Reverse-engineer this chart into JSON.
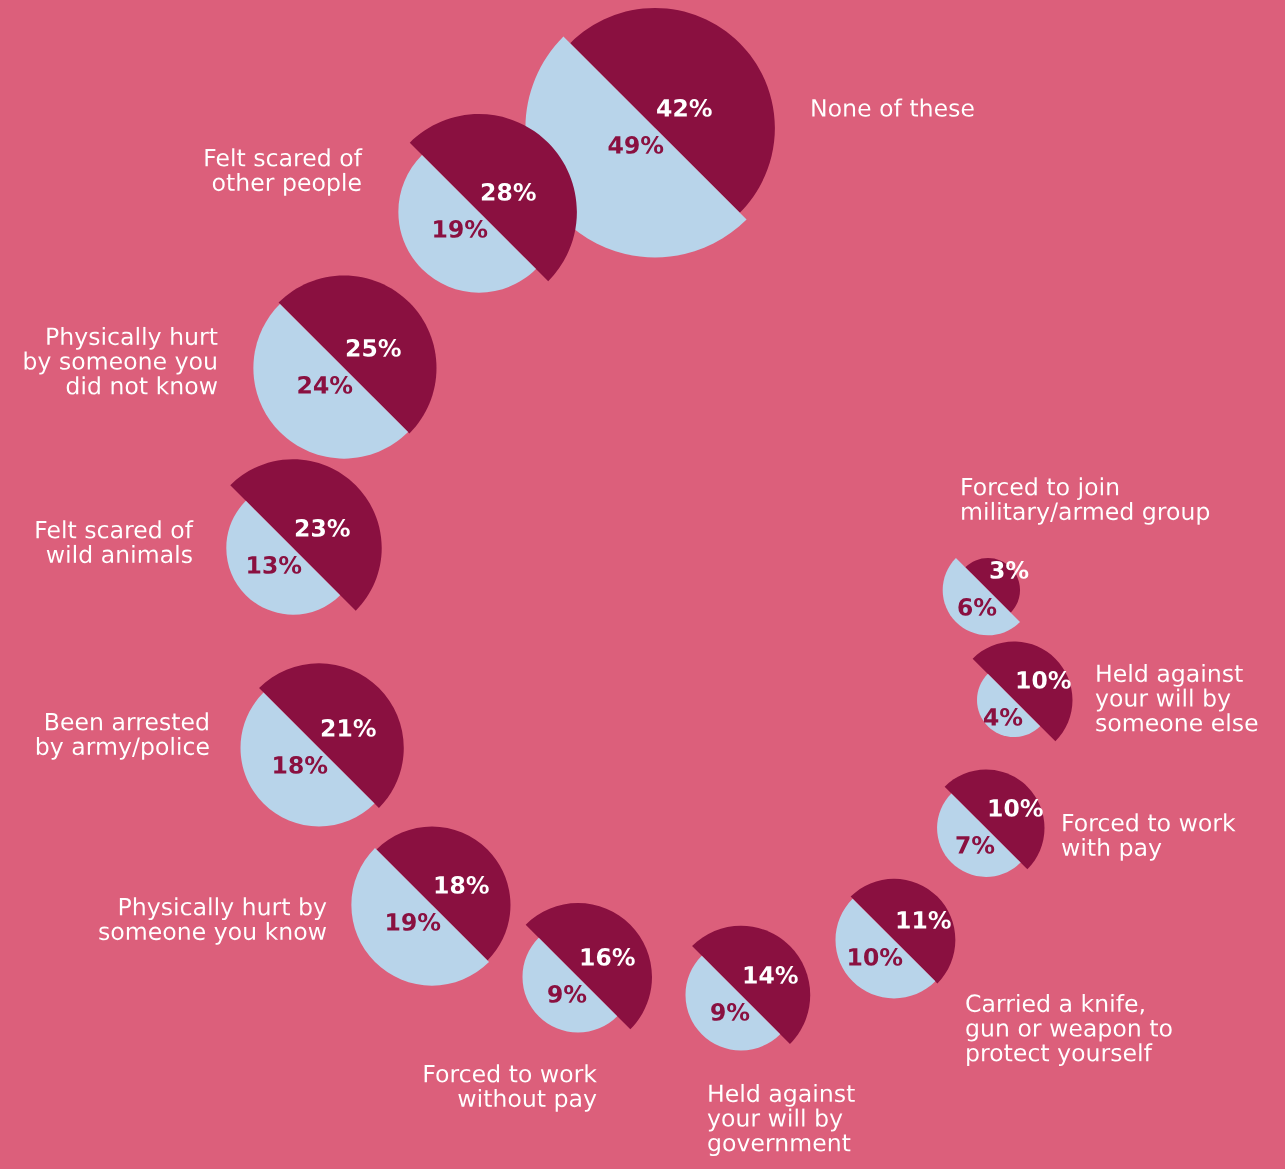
{
  "chart_data": {
    "type": "other",
    "categories": [
      "None of these",
      "Felt scared of\nother people",
      "Physically hurt\nby someone you\ndid not know",
      "Felt scared of\nwild animals",
      "Been arrested\nby army/police",
      "Physically hurt by\nsomeone you know",
      "Forced to work\nwithout pay",
      "Held against\nyour will by\ngovernment",
      "Carried a knife,\ngun or weapon to\nprotect yourself",
      "Forced to work\nwith pay",
      "Held against\nyour will by\nsomeone else",
      "Forced to join\nmilitary/armed group"
    ],
    "series": [
      {
        "color": "#8a1040",
        "values": [
          42,
          28,
          25,
          23,
          21,
          18,
          16,
          14,
          11,
          10,
          10,
          3
        ],
        "value_labels": [
          "42%",
          "28%",
          "25%",
          "23%",
          "21%",
          "18%",
          "16%",
          "14%",
          "11%",
          "10%",
          "10%",
          "3%"
        ]
      },
      {
        "color": "#b8d4ea",
        "values": [
          49,
          19,
          24,
          13,
          18,
          19,
          9,
          9,
          10,
          7,
          4,
          6
        ],
        "value_labels": [
          "49%",
          "19%",
          "24%",
          "13%",
          "18%",
          "19%",
          "9%",
          "9%",
          "10%",
          "7%",
          "4%",
          "6%"
        ]
      }
    ],
    "data_labels": true
  }
}
